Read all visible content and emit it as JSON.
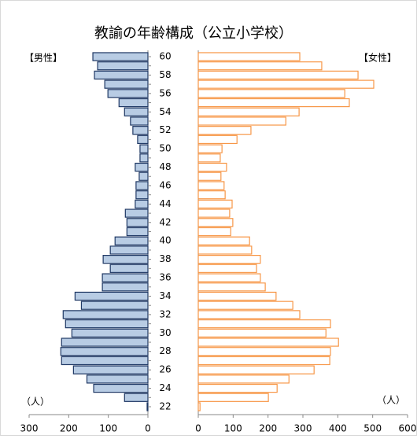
{
  "chart_data": {
    "type": "bar",
    "orientation": "horizontal",
    "layout": "pyramid",
    "title": "教諭の年齢構成（公立小学校）",
    "categories": [
      "22",
      null,
      "24",
      null,
      "26",
      null,
      "28",
      null,
      "30",
      null,
      "32",
      null,
      "34",
      null,
      "36",
      null,
      "38",
      null,
      "40",
      null,
      "42",
      null,
      "44",
      null,
      "46",
      null,
      "48",
      null,
      "50",
      null,
      "52",
      null,
      "54",
      null,
      "56",
      null,
      "58",
      null,
      "60"
    ],
    "series": [
      {
        "name": "【男性】",
        "color": "#b8cce4",
        "edgecolor": "#1f3864",
        "side": "left",
        "xlim": [
          0,
          300
        ],
        "xticks": [
          0,
          100,
          200,
          300
        ],
        "values": [
          2,
          59,
          137,
          154,
          188,
          218,
          220,
          218,
          192,
          208,
          214,
          168,
          184,
          115,
          115,
          95,
          113,
          95,
          83,
          53,
          53,
          57,
          32,
          30,
          30,
          22,
          32,
          20,
          20,
          26,
          38,
          44,
          59,
          73,
          101,
          109,
          135,
          127,
          139
        ]
      },
      {
        "name": "【女性】",
        "color": "#ffffff",
        "edgecolor": "#f79646",
        "side": "right",
        "xlim": [
          0,
          600
        ],
        "xticks": [
          0,
          100,
          200,
          300,
          400,
          500,
          600
        ],
        "values": [
          5,
          201,
          226,
          260,
          332,
          377,
          379,
          402,
          366,
          379,
          291,
          271,
          223,
          192,
          178,
          167,
          178,
          153,
          147,
          93,
          99,
          90,
          97,
          77,
          74,
          65,
          81,
          63,
          68,
          111,
          151,
          251,
          289,
          433,
          420,
          503,
          458,
          354,
          291
        ]
      }
    ],
    "annotations": [
      "（人）",
      "（人）"
    ],
    "grid": false
  }
}
